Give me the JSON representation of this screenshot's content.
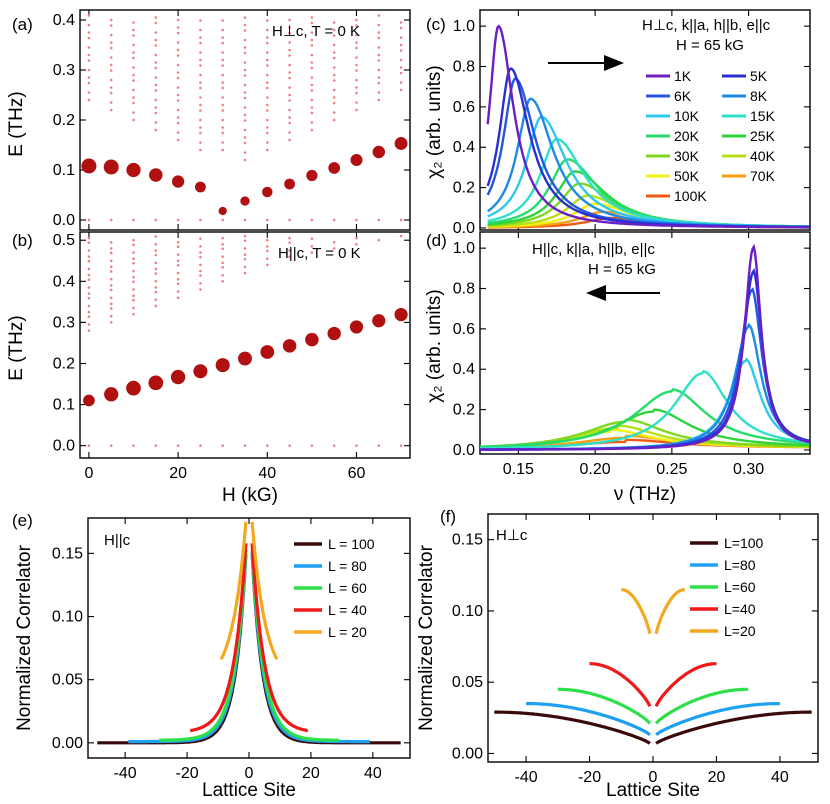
{
  "chart_data": [
    {
      "panel": "a",
      "type": "scatter",
      "panel_label": "(a)",
      "annotation": "H⊥c, T = 0 K",
      "ylabel": "E (THz)",
      "xlabel": "",
      "xlim": [
        -2,
        72
      ],
      "ylim": [
        -0.02,
        0.42
      ],
      "yticks": [
        0.0,
        0.1,
        0.2,
        0.3,
        0.4
      ],
      "ytick_labels": [
        "0.0",
        "0.1",
        "0.2",
        "0.3",
        "0.4"
      ],
      "main_branch": {
        "x": [
          0,
          5,
          10,
          15,
          20,
          25,
          30,
          35,
          40,
          45,
          50,
          55,
          60,
          65,
          70
        ],
        "y": [
          0.108,
          0.106,
          0.1,
          0.09,
          0.077,
          0.066,
          0.018,
          0.038,
          0.056,
          0.072,
          0.089,
          0.104,
          0.12,
          0.136,
          0.153
        ],
        "sizes": [
          1.0,
          1.0,
          0.95,
          0.9,
          0.82,
          0.72,
          0.55,
          0.62,
          0.7,
          0.72,
          0.75,
          0.78,
          0.8,
          0.83,
          0.86
        ]
      },
      "continuum_fields": [
        0,
        5,
        10,
        15,
        20,
        25,
        30,
        35,
        40,
        45,
        50,
        55,
        60,
        65,
        70
      ],
      "continuum_min": [
        0.24,
        0.22,
        0.2,
        0.18,
        0.16,
        0.14,
        0.14,
        0.12,
        0.14,
        0.16,
        0.18,
        0.2,
        0.22,
        0.24,
        0.26
      ],
      "zero_points_y": 0.0
    },
    {
      "panel": "b",
      "type": "scatter",
      "panel_label": "(b)",
      "annotation": "H||c, T = 0 K",
      "ylabel": "E (THz)",
      "xlabel": "H (kG)",
      "xlim": [
        -2,
        72
      ],
      "ylim": [
        -0.03,
        0.52
      ],
      "yticks": [
        0.0,
        0.1,
        0.2,
        0.3,
        0.4,
        0.5
      ],
      "ytick_labels": [
        "0.0",
        "0.1",
        "0.2",
        "0.3",
        "0.4",
        "0.5"
      ],
      "xticks": [
        0,
        20,
        40,
        60
      ],
      "xtick_labels": [
        "0",
        "20",
        "40",
        "60"
      ],
      "main_branch": {
        "x": [
          0,
          5,
          10,
          15,
          20,
          25,
          30,
          35,
          40,
          45,
          50,
          55,
          60,
          65,
          70
        ],
        "y": [
          0.11,
          0.125,
          0.14,
          0.153,
          0.167,
          0.181,
          0.196,
          0.212,
          0.228,
          0.243,
          0.258,
          0.273,
          0.289,
          0.304,
          0.319
        ],
        "sizes": [
          0.78,
          0.95,
          0.98,
          0.98,
          0.96,
          0.94,
          0.94,
          0.93,
          0.92,
          0.9,
          0.9,
          0.89,
          0.88,
          0.88,
          0.88
        ]
      },
      "continuum_fields": [
        0,
        5,
        10,
        15,
        20,
        25,
        30,
        35,
        40,
        45,
        50,
        55,
        60,
        65,
        70
      ],
      "continuum_min": [
        0.28,
        0.3,
        0.32,
        0.34,
        0.36,
        0.38,
        0.4,
        0.42,
        0.44,
        0.46,
        0.47,
        0.48,
        0.49,
        0.5,
        0.51
      ],
      "zero_points_y": 0.0
    },
    {
      "panel": "c",
      "type": "line",
      "panel_label": "(c)",
      "annotation_line1": "H⊥c, k||a, h||b, e||c",
      "annotation_line2": "H = 65 kG",
      "ylabel": "χ₂ (arb. units)",
      "xlim": [
        0.125,
        0.34
      ],
      "ylim": [
        -0.01,
        1.08
      ],
      "yticks": [
        0.0,
        0.2,
        0.4,
        0.6,
        0.8,
        1.0
      ],
      "ytick_labels": [
        "0.0",
        "0.2",
        "0.4",
        "0.6",
        "0.8",
        "1.0"
      ],
      "arrow_direction": "right",
      "series": [
        {
          "name": "1K",
          "color": "#6a1fc4",
          "peak_x": 0.137,
          "peak_y": 1.0,
          "width": 0.012
        },
        {
          "name": "5K",
          "color": "#2a2fd0",
          "peak_x": 0.145,
          "peak_y": 0.79,
          "width": 0.015
        },
        {
          "name": "6K",
          "color": "#2456e0",
          "peak_x": 0.148,
          "peak_y": 0.74,
          "width": 0.016
        },
        {
          "name": "8K",
          "color": "#1e8ae8",
          "peak_x": 0.158,
          "peak_y": 0.64,
          "width": 0.018
        },
        {
          "name": "10K",
          "color": "#2ec8ee",
          "peak_x": 0.165,
          "peak_y": 0.55,
          "width": 0.02
        },
        {
          "name": "15K",
          "color": "#2ee0c8",
          "peak_x": 0.175,
          "peak_y": 0.44,
          "width": 0.022
        },
        {
          "name": "20K",
          "color": "#25dc6a",
          "peak_x": 0.182,
          "peak_y": 0.34,
          "width": 0.024
        },
        {
          "name": "25K",
          "color": "#2ed43a",
          "peak_x": 0.187,
          "peak_y": 0.28,
          "width": 0.025
        },
        {
          "name": "30K",
          "color": "#7ed81e",
          "peak_x": 0.19,
          "peak_y": 0.22,
          "width": 0.026
        },
        {
          "name": "40K",
          "color": "#b8e018",
          "peak_x": 0.195,
          "peak_y": 0.16,
          "width": 0.027
        },
        {
          "name": "50K",
          "color": "#f4f014",
          "peak_x": 0.2,
          "peak_y": 0.12,
          "width": 0.028
        },
        {
          "name": "70K",
          "color": "#f4a010",
          "peak_x": 0.205,
          "peak_y": 0.08,
          "width": 0.03
        },
        {
          "name": "100K",
          "color": "#f05a14",
          "peak_x": 0.21,
          "peak_y": 0.05,
          "width": 0.032
        }
      ]
    },
    {
      "panel": "d",
      "type": "line",
      "panel_label": "(d)",
      "annotation_line1": "H||c, k||a, h||b, e||c",
      "annotation_line2": "H = 65 kG",
      "ylabel": "χ₂ (arb. units)",
      "xlabel": "ν (THz)",
      "xlim": [
        0.125,
        0.34
      ],
      "ylim": [
        -0.02,
        1.08
      ],
      "yticks": [
        0.0,
        0.2,
        0.4,
        0.6,
        0.8,
        1.0
      ],
      "ytick_labels": [
        "0.0",
        "0.2",
        "0.4",
        "0.6",
        "0.8",
        "1.0"
      ],
      "xticks": [
        0.15,
        0.2,
        0.25,
        0.3
      ],
      "xtick_labels": [
        "0.15",
        "0.20",
        "0.25",
        "0.30"
      ],
      "arrow_direction": "left",
      "series": [
        {
          "name": "1K",
          "color": "#6a1fc4",
          "peak_x": 0.303,
          "peak_y": 1.0,
          "width": 0.007
        },
        {
          "name": "5K",
          "color": "#2a2fd0",
          "peak_x": 0.303,
          "peak_y": 0.88,
          "width": 0.008
        },
        {
          "name": "6K",
          "color": "#2456e0",
          "peak_x": 0.302,
          "peak_y": 0.79,
          "width": 0.009
        },
        {
          "name": "8K",
          "color": "#1e8ae8",
          "peak_x": 0.3,
          "peak_y": 0.61,
          "width": 0.011
        },
        {
          "name": "10K",
          "color": "#2ec8ee",
          "peak_x": 0.298,
          "peak_y": 0.44,
          "width": 0.013
        },
        {
          "name": "15K",
          "color": "#2ee0c8",
          "peak_x": 0.27,
          "peak_y": 0.38,
          "width": 0.022
        },
        {
          "name": "20K",
          "color": "#25dc6a",
          "peak_x": 0.25,
          "peak_y": 0.29,
          "width": 0.03
        },
        {
          "name": "25K",
          "color": "#2ed43a",
          "peak_x": 0.238,
          "peak_y": 0.19,
          "width": 0.032
        },
        {
          "name": "30K",
          "color": "#7ed81e",
          "peak_x": 0.22,
          "peak_y": 0.14,
          "width": 0.034
        },
        {
          "name": "40K",
          "color": "#b8e018",
          "peak_x": 0.215,
          "peak_y": 0.11,
          "width": 0.035
        },
        {
          "name": "50K",
          "color": "#f4f014",
          "peak_x": 0.21,
          "peak_y": 0.09,
          "width": 0.036
        },
        {
          "name": "70K",
          "color": "#f4a010",
          "peak_x": 0.22,
          "peak_y": 0.06,
          "width": 0.04
        },
        {
          "name": "100K",
          "color": "#f05a14",
          "peak_x": 0.22,
          "peak_y": 0.04,
          "width": 0.045
        }
      ]
    },
    {
      "panel": "e",
      "type": "line",
      "panel_label": "(e)",
      "annotation": "H||c",
      "ylabel": "Normalized Correlator",
      "xlabel": "Lattice Site",
      "xlim": [
        -52,
        52
      ],
      "ylim": [
        -0.012,
        0.178
      ],
      "yticks": [
        0.0,
        0.05,
        0.1,
        0.15
      ],
      "ytick_labels": [
        "0.00",
        "0.05",
        "0.10",
        "0.15"
      ],
      "xticks": [
        -40,
        -20,
        0,
        20,
        40
      ],
      "xtick_labels": [
        "-40",
        "-20",
        "0",
        "20",
        "40"
      ],
      "series": [
        {
          "name": "L = 100",
          "color": "#3a0a0a",
          "L": 100,
          "center": 0.15,
          "decay": 3.4,
          "floor": 0.0
        },
        {
          "name": "L = 80",
          "color": "#1ea0f0",
          "L": 80,
          "center": 0.15,
          "decay": 3.6,
          "floor": 0.001
        },
        {
          "name": "L = 60",
          "color": "#2ee048",
          "L": 60,
          "center": 0.152,
          "decay": 3.8,
          "floor": 0.002
        },
        {
          "name": "L = 40",
          "color": "#f01818",
          "L": 40,
          "center": 0.158,
          "decay": 4.0,
          "floor": 0.008
        },
        {
          "name": "L = 20",
          "color": "#f4a820",
          "L": 20,
          "center": 0.175,
          "decay": 4.4,
          "floor": 0.045
        }
      ]
    },
    {
      "panel": "f",
      "type": "line",
      "panel_label": "(f)",
      "annotation": "H⊥c",
      "ylabel": "Normalized Correlator",
      "xlabel": "Lattice Site",
      "xlim": [
        -52,
        52
      ],
      "ylim": [
        -0.006,
        0.168
      ],
      "yticks": [
        0.0,
        0.05,
        0.1,
        0.15
      ],
      "ytick_labels": [
        "0.00",
        "0.05",
        "0.10",
        "0.15"
      ],
      "xticks": [
        -40,
        -20,
        0,
        20,
        40
      ],
      "xtick_labels": [
        "-40",
        "-20",
        "0",
        "20",
        "40"
      ],
      "series": [
        {
          "name": "L=100",
          "color": "#3a0a0a",
          "L": 100,
          "min": 0.007,
          "max": 0.029
        },
        {
          "name": "L=80",
          "color": "#1ea0f0",
          "L": 80,
          "min": 0.013,
          "max": 0.035
        },
        {
          "name": "L=60",
          "color": "#2ee048",
          "L": 60,
          "min": 0.021,
          "max": 0.045
        },
        {
          "name": "L=40",
          "color": "#f01818",
          "L": 40,
          "min": 0.033,
          "max": 0.063
        },
        {
          "name": "L=20",
          "color": "#f4a820",
          "L": 20,
          "min": 0.084,
          "max": 0.115
        }
      ]
    }
  ]
}
